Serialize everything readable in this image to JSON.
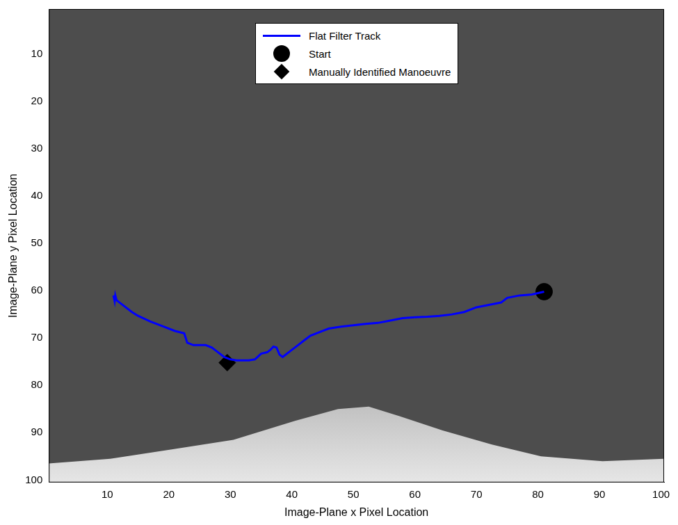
{
  "chart_data": {
    "type": "line",
    "xlabel": "Image-Plane x Pixel Location",
    "ylabel": "Image-Plane y Pixel Location",
    "xlim": [
      0.5,
      100.5
    ],
    "ylim": [
      100.5,
      0.5
    ],
    "xticks": [
      10,
      20,
      30,
      40,
      50,
      60,
      70,
      80,
      90,
      100
    ],
    "yticks": [
      10,
      20,
      30,
      40,
      50,
      60,
      70,
      80,
      90,
      100
    ],
    "grid": false,
    "legend": "top",
    "series": [
      {
        "name": "Flat Filter Track",
        "color": "#0000ff",
        "type": "line",
        "line_style": "solid",
        "x": [
          81,
          79,
          77,
          75,
          74,
          72,
          70,
          68,
          66,
          64,
          62,
          60,
          58,
          56,
          54,
          52,
          50,
          48,
          46,
          45,
          43,
          42,
          41,
          40,
          39,
          38.5,
          38,
          37.5,
          37,
          36.5,
          36,
          35,
          34,
          33,
          31,
          30,
          29,
          28,
          27,
          26,
          24,
          23,
          22.5,
          21,
          19,
          17,
          15,
          14,
          13,
          12,
          11.5,
          11.3,
          11.2,
          11
        ],
        "values": [
          60.2,
          60.8,
          61,
          61.5,
          62.5,
          63,
          63.5,
          64.5,
          65,
          65.3,
          65.5,
          65.6,
          65.8,
          66.3,
          66.8,
          67,
          67.3,
          67.6,
          68,
          68.5,
          69.5,
          70.5,
          71.5,
          72.5,
          73.5,
          74,
          73.5,
          72,
          71.8,
          72.5,
          73,
          73.3,
          74.5,
          74.7,
          74.7,
          74.5,
          74,
          73,
          72,
          71.5,
          71.5,
          71,
          69,
          68.5,
          67.5,
          66.5,
          65.3,
          64.5,
          63.5,
          62.5,
          62,
          61,
          62.2,
          61
        ]
      },
      {
        "name": "Start",
        "color": "#000000",
        "type": "scatter",
        "marker": "circle",
        "x": [
          81
        ],
        "values": [
          60.2
        ]
      },
      {
        "name": "Manually Identified Manoeuvre",
        "color": "#000000",
        "type": "scatter",
        "marker": "diamond",
        "x": [
          29.5
        ],
        "values": [
          75.2
        ]
      }
    ]
  }
}
